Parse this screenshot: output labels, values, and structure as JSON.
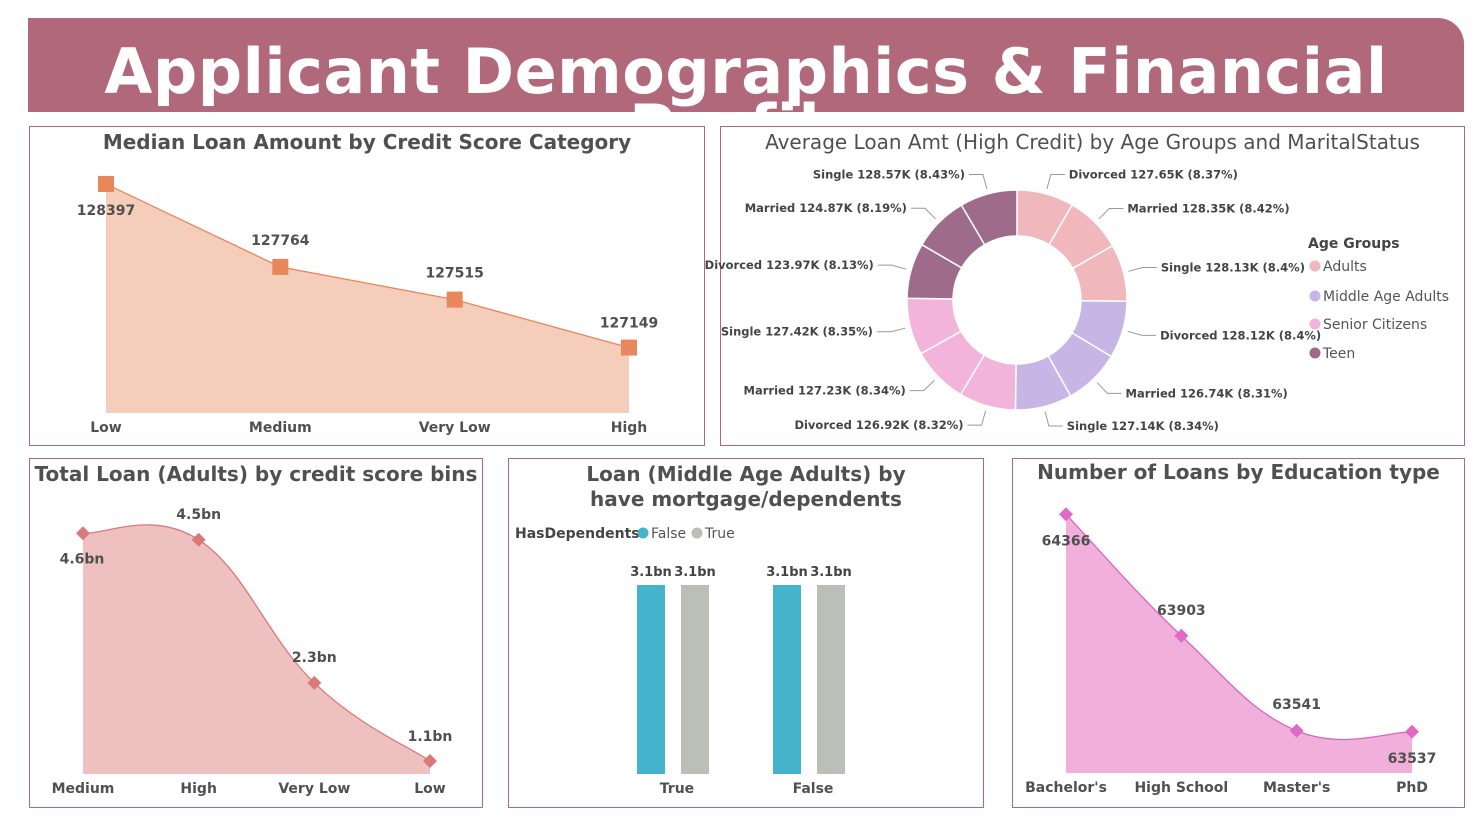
{
  "page": {
    "title": "Applicant Demographics & Financial Profile"
  },
  "colors": {
    "banner": "#b0687a",
    "panel_border": "#b0687a",
    "chart1_fill": "#f5cdbb",
    "chart1_line": "#e8875c",
    "chart1_marker": "#e8875c",
    "chart3_fill": "#eec0c0",
    "chart3_line": "#d97a7a",
    "chart3_marker": "#d97a7a",
    "chart4_false": "#45b3cc",
    "chart4_true": "#bbbfb8",
    "chart5_fill": "#f1b0dc",
    "chart5_line": "#d766be",
    "chart5_marker": "#e069c6"
  },
  "chart_data": [
    {
      "id": "median-loan-credit",
      "type": "area",
      "title": "Median Loan Amount by Credit Score Category",
      "categories": [
        "Low",
        "Medium",
        "Very Low",
        "High"
      ],
      "values": [
        128397,
        127764,
        127515,
        127149
      ],
      "value_labels": [
        "128397",
        "127764",
        "127515",
        "127149"
      ],
      "ylim": [
        126650,
        128450
      ],
      "marker": "square",
      "grid": false
    },
    {
      "id": "avg-loan-age-marital",
      "type": "pie",
      "donut": true,
      "title": "Average Loan Amt (High Credit) by Age Groups and MaritalStatus",
      "legend": {
        "title": "Age Groups",
        "position": "right",
        "items": [
          {
            "name": "Adults",
            "color": "#f0b7bd"
          },
          {
            "name": "Middle Age Adults",
            "color": "#c7b5e6"
          },
          {
            "name": "Senior Citizens",
            "color": "#f2b4da"
          },
          {
            "name": "Teen",
            "color": "#9e6b8a"
          }
        ]
      },
      "slices": [
        {
          "group": "Adults",
          "status": "Divorced",
          "value": 127.65,
          "label": "Divorced 127.65K (8.37%)"
        },
        {
          "group": "Adults",
          "status": "Married",
          "value": 128.35,
          "label": "Married 128.35K (8.42%)"
        },
        {
          "group": "Adults",
          "status": "Single",
          "value": 128.13,
          "label": "Single 128.13K (8.4%)"
        },
        {
          "group": "Middle Age Adults",
          "status": "Divorced",
          "value": 128.12,
          "label": "Divorced 128.12K (8.4%)"
        },
        {
          "group": "Middle Age Adults",
          "status": "Married",
          "value": 126.74,
          "label": "Married 126.74K (8.31%)"
        },
        {
          "group": "Middle Age Adults",
          "status": "Single",
          "value": 127.14,
          "label": "Single 127.14K (8.34%)"
        },
        {
          "group": "Senior Citizens",
          "status": "Divorced",
          "value": 126.92,
          "label": "Divorced 126.92K (8.32%)"
        },
        {
          "group": "Senior Citizens",
          "status": "Married",
          "value": 127.23,
          "label": "Married 127.23K (8.34%)"
        },
        {
          "group": "Senior Citizens",
          "status": "Single",
          "value": 127.42,
          "label": "Single 127.42K (8.35%)"
        },
        {
          "group": "Teen",
          "status": "Divorced",
          "value": 123.97,
          "label": "Divorced 123.97K (8.13%)"
        },
        {
          "group": "Teen",
          "status": "Married",
          "value": 124.87,
          "label": "Married 124.87K (8.19%)"
        },
        {
          "group": "Teen",
          "status": "Single",
          "value": 128.57,
          "label": "Single 128.57K (8.43%)"
        }
      ]
    },
    {
      "id": "total-loan-adults-bins",
      "type": "area",
      "title": "Total Loan (Adults) by credit score bins",
      "categories": [
        "Medium",
        "High",
        "Very Low",
        "Low"
      ],
      "values": [
        4.6,
        4.5,
        2.3,
        1.1
      ],
      "value_labels": [
        "4.6bn",
        "4.5bn",
        "2.3bn",
        "1.1bn"
      ],
      "ylim": [
        0.9,
        4.85
      ],
      "marker": "diamond",
      "smooth": true,
      "grid": false
    },
    {
      "id": "loan-middle-age-mortgage",
      "type": "bar",
      "title": "Loan (Middle Age Adults) by have mortgage/dependents",
      "legend": {
        "title": "HasDependents",
        "position": "top-left",
        "items": [
          {
            "name": "False",
            "color": "#45b3cc"
          },
          {
            "name": "True",
            "color": "#bbbfb8"
          }
        ]
      },
      "categories": [
        "True",
        "False"
      ],
      "series": [
        {
          "name": "False",
          "values": [
            3.1,
            3.1
          ]
        },
        {
          "name": "True",
          "values": [
            3.1,
            3.1
          ]
        }
      ],
      "value_labels": [
        "3.1bn",
        "3.1bn",
        "3.1bn",
        "3.1bn"
      ],
      "ylim": [
        0,
        3.1
      ],
      "grid": false
    },
    {
      "id": "loans-by-education",
      "type": "area",
      "title": "Number of Loans by Education type",
      "categories": [
        "Bachelor's",
        "High School",
        "Master's",
        "PhD"
      ],
      "values": [
        64366,
        63903,
        63541,
        63537
      ],
      "value_labels": [
        "64366",
        "63903",
        "63541",
        "63537"
      ],
      "ylim": [
        63380,
        64390
      ],
      "marker": "diamond",
      "smooth": true,
      "grid": false
    }
  ]
}
